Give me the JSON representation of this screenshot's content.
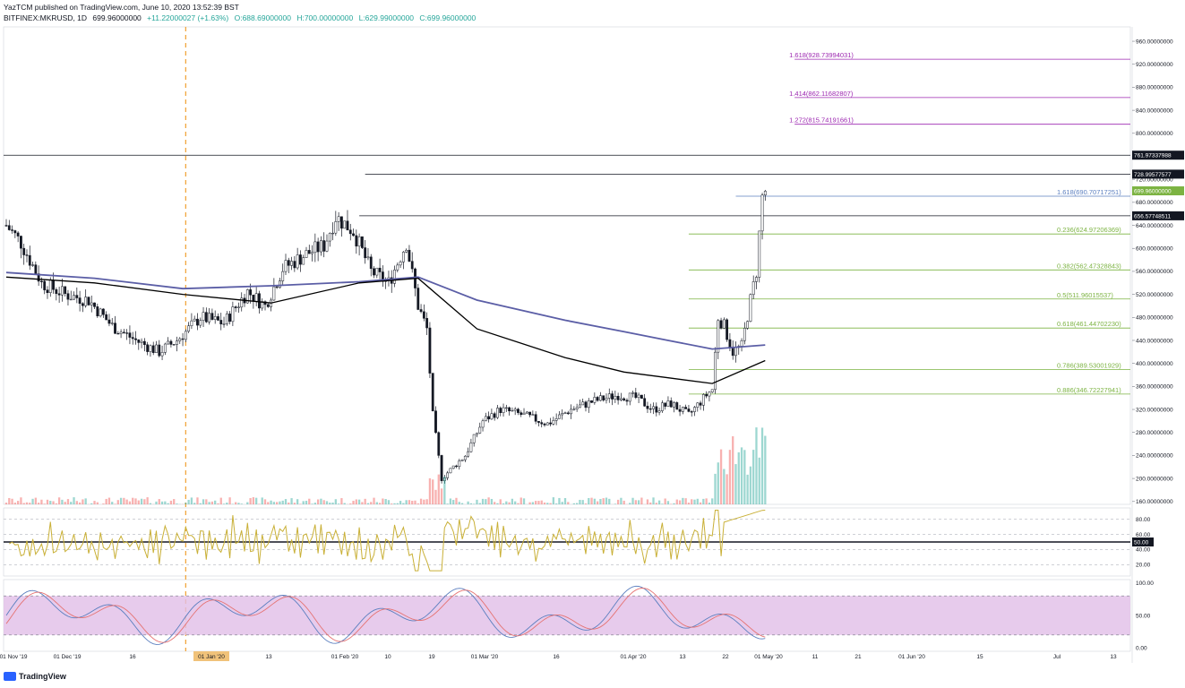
{
  "header": {
    "publisher_line": "YazTCM published on TradingView.com, June 10, 2020 13:52:39 BST",
    "symbol": "BITFINEX:MKRUSD, 1D",
    "last": "699.96000000",
    "change": "+11.22000027 (+1.63%)",
    "open": "O:688.69000000",
    "high": "H:700.00000000",
    "low": "L:629.99000000",
    "close": "C:699.96000000"
  },
  "brand": {
    "label": "TradingView"
  },
  "colors": {
    "up": "#26a69a",
    "down": "#ef5350",
    "ma_blue": "#5b5ea6",
    "ma_black": "#000000",
    "fib_green": "#7cb342",
    "fib_purple": "#9c27b0",
    "fib_blue": "#5b7fbf",
    "rsi_line": "#c9b037",
    "stoch_fill": "#e1bee7",
    "stoch_k": "#5b7fbf",
    "stoch_d": "#e57373"
  },
  "chart_data": {
    "type": "candlestick",
    "price_axis": {
      "ticks": [
        "960.00000000",
        "920.00000000",
        "880.00000000",
        "840.00000000",
        "800.00000000",
        "760.00000000",
        "720.00000000",
        "680.00000000",
        "640.00000000",
        "600.00000000",
        "560.00000000",
        "520.00000000",
        "480.00000000",
        "440.00000000",
        "400.00000000",
        "360.00000000",
        "320.00000000",
        "280.00000000",
        "240.00000000",
        "200.00000000",
        "160.00000000"
      ],
      "ylim": [
        155,
        985
      ]
    },
    "price_tags": [
      {
        "price": 761.97337988,
        "label": "761.97337988",
        "color": "#131722",
        "text": "#ffffff"
      },
      {
        "price": 728.99577577,
        "label": "728.99577577",
        "color": "#131722",
        "text": "#ffffff"
      },
      {
        "price": 699.96,
        "label": "699.96000000",
        "color": "#7cb342",
        "text": "#ffffff"
      },
      {
        "price": 656.57748511,
        "label": "656.57748511",
        "color": "#131722",
        "text": "#ffffff"
      }
    ],
    "horizontal_lines": [
      {
        "price": 761.97337988,
        "color": "#131722"
      },
      {
        "price": 728.99577577,
        "color": "#131722"
      },
      {
        "price": 656.57748511,
        "color": "#131722"
      }
    ],
    "fib_levels": [
      {
        "label": "1.618(928.73994031)",
        "price": 928.73994031,
        "color": "#9c27b0"
      },
      {
        "label": "1.414(862.11682807)",
        "price": 862.11682807,
        "color": "#9c27b0"
      },
      {
        "label": "1.272(815.74191661)",
        "price": 815.74191661,
        "color": "#9c27b0"
      },
      {
        "label": "1.618(690.70717251)",
        "price": 690.70717251,
        "color": "#5b7fbf"
      },
      {
        "label": "0.236(624.97206369)",
        "price": 624.97206369,
        "color": "#7cb342"
      },
      {
        "label": "0.382(562.47328843)",
        "price": 562.47328843,
        "color": "#7cb342"
      },
      {
        "label": "0.5(511.96015537)",
        "price": 511.96015537,
        "color": "#7cb342"
      },
      {
        "label": "0.618(461.44702230)",
        "price": 461.4470223,
        "color": "#7cb342"
      },
      {
        "label": "0.786(389.53001929)",
        "price": 389.53001929,
        "color": "#7cb342"
      },
      {
        "label": "0.886(346.72227941)",
        "price": 346.72227941,
        "color": "#7cb342"
      }
    ],
    "x_axis_labels": [
      "01 Nov '19",
      "01 Dec '19",
      "16",
      "01 Jan '20",
      "13",
      "01 Feb '20",
      "10",
      "19",
      "01 Mar '20",
      "16",
      "01 Apr '20",
      "13",
      "22",
      "01 May '20",
      "11",
      "21",
      "01 Jun '20",
      "15",
      "Jul",
      "13"
    ],
    "anchors": [
      {
        "day": 0,
        "price": 640
      },
      {
        "day": 5,
        "price": 610
      },
      {
        "day": 12,
        "price": 540
      },
      {
        "day": 20,
        "price": 520
      },
      {
        "day": 28,
        "price": 510
      },
      {
        "day": 36,
        "price": 465
      },
      {
        "day": 44,
        "price": 440
      },
      {
        "day": 52,
        "price": 420
      },
      {
        "day": 58,
        "price": 440
      },
      {
        "day": 66,
        "price": 480
      },
      {
        "day": 74,
        "price": 470
      },
      {
        "day": 82,
        "price": 525
      },
      {
        "day": 88,
        "price": 500
      },
      {
        "day": 94,
        "price": 565
      },
      {
        "day": 102,
        "price": 590
      },
      {
        "day": 108,
        "price": 605
      },
      {
        "day": 112,
        "price": 655
      },
      {
        "day": 118,
        "price": 630
      },
      {
        "day": 124,
        "price": 560
      },
      {
        "day": 130,
        "price": 540
      },
      {
        "day": 136,
        "price": 610
      },
      {
        "day": 140,
        "price": 500
      },
      {
        "day": 143,
        "price": 460
      },
      {
        "day": 145,
        "price": 310
      },
      {
        "day": 148,
        "price": 200
      },
      {
        "day": 150,
        "price": 210
      },
      {
        "day": 156,
        "price": 240
      },
      {
        "day": 162,
        "price": 300
      },
      {
        "day": 168,
        "price": 320
      },
      {
        "day": 176,
        "price": 310
      },
      {
        "day": 184,
        "price": 295
      },
      {
        "day": 192,
        "price": 320
      },
      {
        "day": 200,
        "price": 335
      },
      {
        "day": 208,
        "price": 345
      },
      {
        "day": 214,
        "price": 340
      },
      {
        "day": 220,
        "price": 320
      },
      {
        "day": 226,
        "price": 330
      },
      {
        "day": 232,
        "price": 310
      },
      {
        "day": 238,
        "price": 345
      },
      {
        "day": 240,
        "price": 355
      },
      {
        "day": 242,
        "price": 480
      },
      {
        "day": 244,
        "price": 465
      },
      {
        "day": 247,
        "price": 420
      },
      {
        "day": 250,
        "price": 430
      },
      {
        "day": 253,
        "price": 510
      },
      {
        "day": 255,
        "price": 560
      },
      {
        "day": 257,
        "price": 690
      },
      {
        "day": 258,
        "price": 700
      }
    ],
    "ma200": [
      [
        0,
        558
      ],
      [
        30,
        548
      ],
      [
        60,
        530
      ],
      [
        90,
        535
      ],
      [
        120,
        542
      ],
      [
        140,
        550
      ],
      [
        160,
        510
      ],
      [
        190,
        475
      ],
      [
        210,
        455
      ],
      [
        225,
        440
      ],
      [
        240,
        425
      ],
      [
        258,
        432
      ]
    ],
    "ma100": [
      [
        0,
        550
      ],
      [
        30,
        540
      ],
      [
        60,
        520
      ],
      [
        90,
        505
      ],
      [
        120,
        540
      ],
      [
        140,
        548
      ],
      [
        160,
        460
      ],
      [
        190,
        410
      ],
      [
        210,
        385
      ],
      [
        225,
        375
      ],
      [
        240,
        365
      ],
      [
        258,
        405
      ]
    ],
    "rsi": {
      "levels": [
        "80.00",
        "60.00",
        "50.00",
        "40.00",
        "20.00"
      ],
      "marked": "50.00",
      "ylim": [
        5,
        95
      ]
    },
    "stoch": {
      "levels": [
        "100.00",
        "50.00",
        "0.00"
      ],
      "ylim": [
        -5,
        105
      ]
    }
  }
}
